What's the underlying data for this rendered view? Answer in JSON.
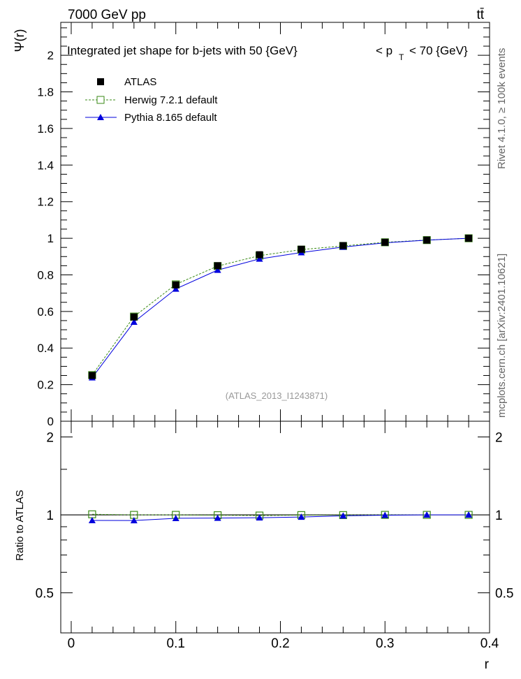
{
  "header": {
    "energy_label": "7000 GeV pp",
    "process_label": "tt̄",
    "side_label_top": "Rivet 4.1.0, ≥ 100k events",
    "side_label_bottom": "mcplots.cern.ch [arXiv:2401.10621]"
  },
  "chart_data": [
    {
      "type": "line",
      "title_left": "Integrated jet shape for b-jets with 50 {GeV}",
      "title_mid": "< p",
      "title_sub": "T",
      "title_right": "< 70 {GeV}",
      "ylabel": "Ψ(r)",
      "xlabel": "r",
      "xlim": [
        -0.01,
        0.4
      ],
      "ylim": [
        0,
        2.18
      ],
      "yticks": [
        0,
        0.2,
        0.4,
        0.6,
        0.8,
        1,
        1.2,
        1.4,
        1.6,
        1.8,
        2
      ],
      "ytick_labels": [
        "0",
        "0.2",
        "0.4",
        "0.6",
        "0.8",
        "1",
        "1.2",
        "1.4",
        "1.6",
        "1.8",
        "2"
      ],
      "x": [
        0.02,
        0.06,
        0.1,
        0.14,
        0.18,
        0.22,
        0.26,
        0.3,
        0.34,
        0.38
      ],
      "series": [
        {
          "name": "ATLAS",
          "color": "#000000",
          "marker": "square-filled",
          "line": "none",
          "values": [
            0.25,
            0.57,
            0.745,
            0.85,
            0.91,
            0.94,
            0.96,
            0.978,
            0.99,
            1.0
          ]
        },
        {
          "name": "Herwig 7.2.1 default",
          "color": "#3a8a16",
          "marker": "square-open",
          "line": "dashed",
          "values": [
            0.252,
            0.572,
            0.748,
            0.848,
            0.905,
            0.938,
            0.958,
            0.978,
            0.99,
            1.0
          ]
        },
        {
          "name": "Pythia 8.165 default",
          "color": "#0000dd",
          "marker": "triangle-filled",
          "line": "solid",
          "values": [
            0.238,
            0.542,
            0.723,
            0.826,
            0.887,
            0.922,
            0.952,
            0.975,
            0.99,
            1.0
          ]
        }
      ],
      "watermark": "(ATLAS_2013_I1243871)",
      "legend_position": "top-left"
    },
    {
      "type": "line",
      "ylabel": "Ratio to ATLAS",
      "xlabel": "r",
      "xlim": [
        -0.01,
        0.4
      ],
      "ylim": [
        0.35,
        2.3
      ],
      "yticks": [
        0.5,
        1,
        2
      ],
      "ytick_labels": [
        "0.5",
        "1",
        "2"
      ],
      "xticks": [
        0,
        0.1,
        0.2,
        0.3,
        0.4
      ],
      "xtick_labels": [
        "0",
        "0.1",
        "0.2",
        "0.3",
        "0.4"
      ],
      "x": [
        0.02,
        0.06,
        0.1,
        0.14,
        0.18,
        0.22,
        0.26,
        0.3,
        0.34,
        0.38
      ],
      "series": [
        {
          "name": "Herwig 7.2.1 default",
          "color": "#3a8a16",
          "marker": "square-open",
          "line": "dashed",
          "values": [
            1.005,
            1.0,
            1.0,
            0.997,
            0.994,
            0.998,
            0.998,
            1.0,
            1.0,
            1.0
          ]
        },
        {
          "name": "Pythia 8.165 default",
          "color": "#0000dd",
          "marker": "triangle-filled",
          "line": "solid",
          "values": [
            0.952,
            0.951,
            0.97,
            0.972,
            0.975,
            0.981,
            0.992,
            0.997,
            1.0,
            1.0
          ]
        }
      ]
    }
  ]
}
